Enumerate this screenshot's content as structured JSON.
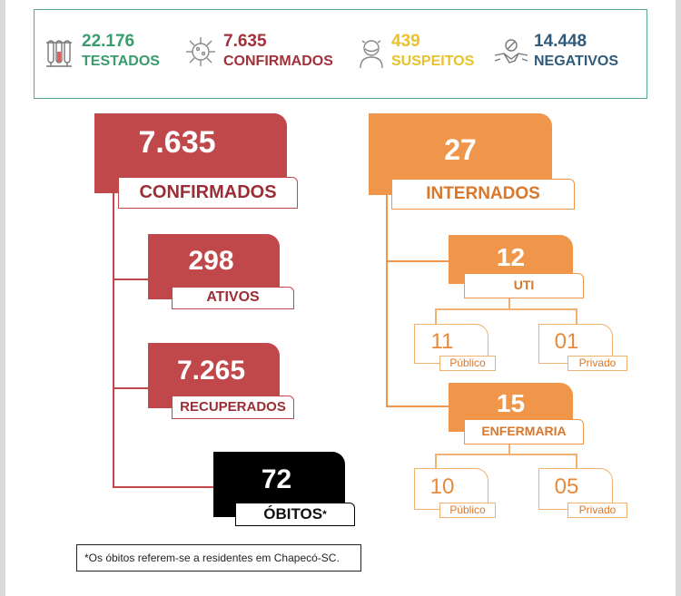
{
  "stats": {
    "testados": {
      "value": "22.176",
      "label": "TESTADOS",
      "icon": "test-tubes-icon",
      "color": "#3a9b6c"
    },
    "confirmados": {
      "value": "7.635",
      "label": "CONFIRMADOS",
      "icon": "virus-icon",
      "color": "#a3303a"
    },
    "suspeitos": {
      "value": "439",
      "label": "SUSPEITOS",
      "icon": "masked-person-icon",
      "color": "#e8c22a"
    },
    "negativos": {
      "value": "14.448",
      "label": "NEGATIVOS",
      "icon": "handshake-icon",
      "color": "#2f5a7a"
    }
  },
  "left": {
    "confirmados": {
      "value": "7.635",
      "label": "CONFIRMADOS"
    },
    "ativos": {
      "value": "298",
      "label": "ATIVOS"
    },
    "recuperados": {
      "value": "7.265",
      "label": "RECUPERADOS"
    },
    "obitos": {
      "value": "72",
      "label": "ÓBITOS",
      "marker": "*"
    }
  },
  "right": {
    "internados": {
      "value": "27",
      "label": "INTERNADOS"
    },
    "uti": {
      "value": "12",
      "label": "UTI",
      "publico": {
        "value": "11",
        "label": "Público"
      },
      "privado": {
        "value": "01",
        "label": "Privado"
      }
    },
    "enfermaria": {
      "value": "15",
      "label": "ENFERMARIA",
      "publico": {
        "value": "10",
        "label": "Público"
      },
      "privado": {
        "value": "05",
        "label": "Privado"
      }
    }
  },
  "footnote": "*Os óbitos referem-se a residentes em Chapecó-SC.",
  "colors": {
    "red": "#c0474a",
    "orange": "#f0964a",
    "black": "#000000",
    "label_red": "#9b2d34",
    "label_orange": "#d9772a"
  }
}
